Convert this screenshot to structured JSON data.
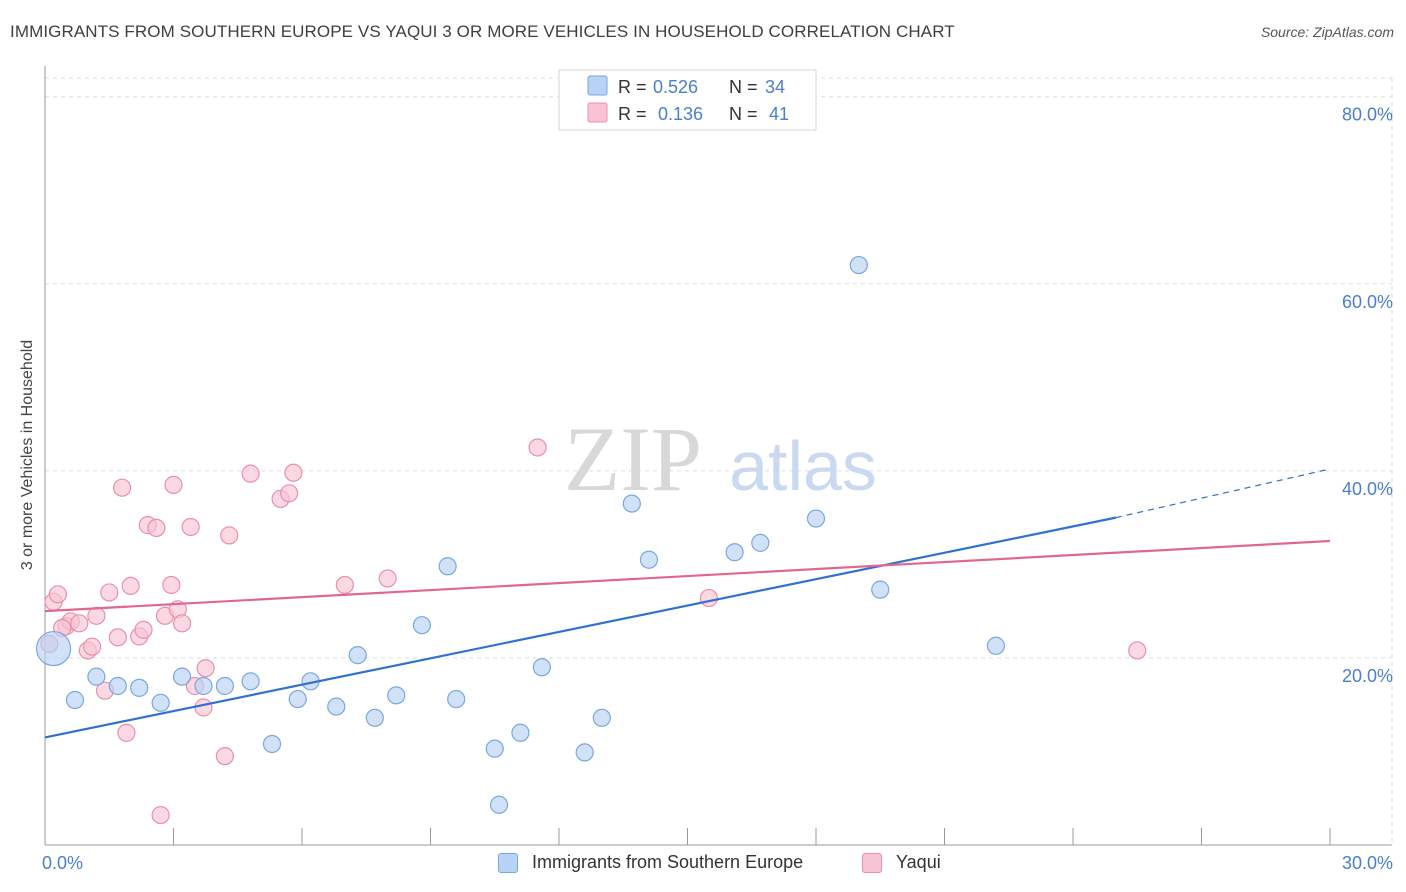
{
  "title": "IMMIGRANTS FROM SOUTHERN EUROPE VS YAQUI 3 OR MORE VEHICLES IN HOUSEHOLD CORRELATION CHART",
  "source": "Source: ZipAtlas.com",
  "watermark": {
    "zip": "ZIP",
    "atlas": "atlas"
  },
  "colors": {
    "blue_fill": "#b8d3f5",
    "blue_stroke": "#7aa7e0",
    "blue_line": "#2f72d0",
    "pink_fill": "#f8c4d3",
    "pink_stroke": "#ec8fad",
    "pink_line": "#e2678f",
    "tick_text": "#4a7fcf",
    "grid": "#dddddd"
  },
  "legend": {
    "rows": [
      {
        "r_label": "R =",
        "r_value": "0.526",
        "n_label": "N =",
        "n_value": "34"
      },
      {
        "r_label": "R =",
        "r_value": "0.136",
        "n_label": "N =",
        "n_value": "41"
      }
    ]
  },
  "chart_data": {
    "type": "scatter",
    "title": "IMMIGRANTS FROM SOUTHERN EUROPE VS YAQUI 3 OR MORE VEHICLES IN HOUSEHOLD CORRELATION CHART",
    "xlabel": "",
    "ylabel": "3 or more Vehicles in Household",
    "xlim": [
      0,
      30
    ],
    "ylim": [
      0,
      82
    ],
    "x_tick_labels": [
      {
        "value": 0,
        "label": "0.0%"
      },
      {
        "value": 30,
        "label": "30.0%"
      }
    ],
    "y_tick_labels": [
      {
        "value": 20,
        "label": "20.0%"
      },
      {
        "value": 40,
        "label": "40.0%"
      },
      {
        "value": 60,
        "label": "60.0%"
      },
      {
        "value": 80,
        "label": "80.0%"
      }
    ],
    "x_minor_ticks": [
      3,
      6,
      9,
      12,
      15,
      18,
      21,
      24,
      27,
      30
    ],
    "series": [
      {
        "name": "Immigrants from Southern Europe",
        "color": "blue",
        "R": 0.526,
        "N": 34,
        "trend": {
          "x": [
            0,
            25
          ],
          "y": [
            11.5,
            35
          ],
          "dashed_to": {
            "x": 30,
            "y": 40.2
          }
        },
        "points": [
          {
            "x": 0.2,
            "y": 21.0,
            "big": true
          },
          {
            "x": 0.7,
            "y": 15.5
          },
          {
            "x": 1.2,
            "y": 18.0
          },
          {
            "x": 1.7,
            "y": 17.0
          },
          {
            "x": 2.2,
            "y": 16.8
          },
          {
            "x": 2.7,
            "y": 15.2
          },
          {
            "x": 3.2,
            "y": 18.0
          },
          {
            "x": 3.7,
            "y": 17.0
          },
          {
            "x": 4.2,
            "y": 17.0
          },
          {
            "x": 4.8,
            "y": 17.5
          },
          {
            "x": 5.3,
            "y": 10.8
          },
          {
            "x": 5.9,
            "y": 15.6
          },
          {
            "x": 6.2,
            "y": 17.5
          },
          {
            "x": 6.8,
            "y": 14.8
          },
          {
            "x": 7.3,
            "y": 20.3
          },
          {
            "x": 7.7,
            "y": 13.6
          },
          {
            "x": 8.2,
            "y": 16.0
          },
          {
            "x": 8.8,
            "y": 23.5
          },
          {
            "x": 9.4,
            "y": 29.8
          },
          {
            "x": 9.6,
            "y": 15.6
          },
          {
            "x": 10.5,
            "y": 10.3
          },
          {
            "x": 10.6,
            "y": 4.3
          },
          {
            "x": 11.1,
            "y": 12.0
          },
          {
            "x": 11.6,
            "y": 19.0
          },
          {
            "x": 12.6,
            "y": 9.9
          },
          {
            "x": 13.0,
            "y": 13.6
          },
          {
            "x": 13.7,
            "y": 36.5
          },
          {
            "x": 14.1,
            "y": 30.5
          },
          {
            "x": 16.1,
            "y": 31.3
          },
          {
            "x": 16.7,
            "y": 32.3
          },
          {
            "x": 18.0,
            "y": 34.9
          },
          {
            "x": 19.0,
            "y": 62.0
          },
          {
            "x": 19.5,
            "y": 27.3
          },
          {
            "x": 22.2,
            "y": 21.3
          }
        ]
      },
      {
        "name": "Yaqui",
        "color": "pink",
        "R": 0.136,
        "N": 41,
        "trend": {
          "x": [
            0,
            30
          ],
          "y": [
            25.0,
            32.5
          ]
        },
        "points": [
          {
            "x": 0.1,
            "y": 21.5
          },
          {
            "x": 0.2,
            "y": 26.0
          },
          {
            "x": 0.3,
            "y": 26.8
          },
          {
            "x": 0.5,
            "y": 23.4
          },
          {
            "x": 0.6,
            "y": 23.9
          },
          {
            "x": 0.8,
            "y": 23.7
          },
          {
            "x": 1.0,
            "y": 20.8
          },
          {
            "x": 1.1,
            "y": 21.2
          },
          {
            "x": 1.2,
            "y": 24.5
          },
          {
            "x": 1.4,
            "y": 16.5
          },
          {
            "x": 1.5,
            "y": 27.0
          },
          {
            "x": 1.7,
            "y": 22.2
          },
          {
            "x": 1.8,
            "y": 38.2
          },
          {
            "x": 1.9,
            "y": 12.0
          },
          {
            "x": 2.0,
            "y": 27.7
          },
          {
            "x": 2.2,
            "y": 22.3
          },
          {
            "x": 2.3,
            "y": 23.0
          },
          {
            "x": 2.4,
            "y": 34.2
          },
          {
            "x": 2.6,
            "y": 33.9
          },
          {
            "x": 2.7,
            "y": 3.2
          },
          {
            "x": 2.8,
            "y": 24.5
          },
          {
            "x": 2.95,
            "y": 27.8
          },
          {
            "x": 3.0,
            "y": 38.5
          },
          {
            "x": 3.1,
            "y": 25.2
          },
          {
            "x": 3.2,
            "y": 23.7
          },
          {
            "x": 3.4,
            "y": 34.0
          },
          {
            "x": 3.5,
            "y": 17.0
          },
          {
            "x": 3.7,
            "y": 14.7
          },
          {
            "x": 3.75,
            "y": 18.9
          },
          {
            "x": 4.2,
            "y": 9.5
          },
          {
            "x": 4.3,
            "y": 33.1
          },
          {
            "x": 4.8,
            "y": 39.7
          },
          {
            "x": 5.5,
            "y": 37.0
          },
          {
            "x": 5.7,
            "y": 37.6
          },
          {
            "x": 5.8,
            "y": 39.8
          },
          {
            "x": 7.0,
            "y": 27.8
          },
          {
            "x": 8.0,
            "y": 28.5
          },
          {
            "x": 11.5,
            "y": 42.5
          },
          {
            "x": 15.5,
            "y": 26.4
          },
          {
            "x": 25.5,
            "y": 20.8
          },
          {
            "x": 0.4,
            "y": 23.2
          }
        ]
      }
    ]
  },
  "bottom_legend": [
    {
      "label": "Immigrants from Southern Europe"
    },
    {
      "label": "Yaqui"
    }
  ]
}
